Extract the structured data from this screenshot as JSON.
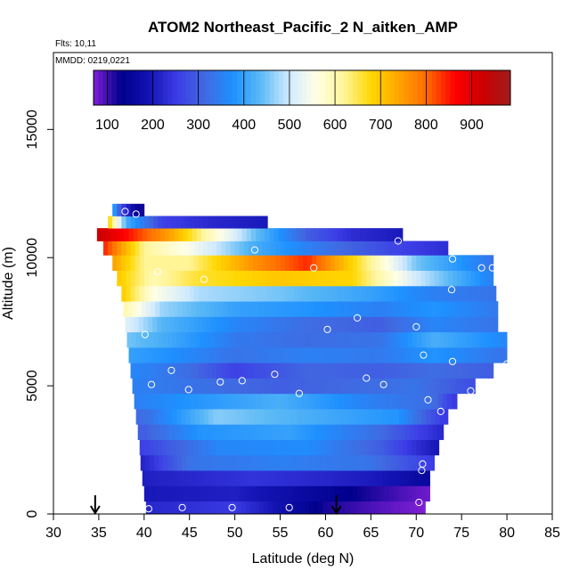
{
  "chart_data": {
    "type": "heatmap",
    "title": "ATOM2 Northeast_Pacific_2 N_aitken_AMP",
    "flights_label": "Flts: 10,11",
    "dates_label": "MMDD: 0219,0221",
    "xlabel": "Latitude (deg N)",
    "ylabel": "Altitude (m)",
    "xlim": [
      30,
      85
    ],
    "ylim": [
      0,
      18000
    ],
    "x_ticks": [
      "30",
      "35",
      "40",
      "45",
      "50",
      "55",
      "60",
      "65",
      "70",
      "75",
      "80",
      "85"
    ],
    "y_ticks": [
      "0",
      "5000",
      "10000",
      "15000"
    ],
    "colorbar": {
      "range": [
        70,
        985
      ],
      "ticks": [
        "100",
        "200",
        "300",
        "400",
        "500",
        "600",
        "700",
        "800",
        "900"
      ],
      "colors": [
        "#7f1fd6",
        "#00008c",
        "#1313b3",
        "#3c3ce6",
        "#4169e1",
        "#1e90ff",
        "#5ab9f5",
        "#cfe9ff",
        "#ffffe6",
        "#fff59a",
        "#ffd700",
        "#ffa500",
        "#ff6a00",
        "#ff0000",
        "#cc0000",
        "#a01c1c"
      ]
    },
    "altitude_bins": [
      {
        "alt": 200,
        "lat_min": 40.2,
        "lat_max": 71.0,
        "values": [
          [
            40,
            220
          ],
          [
            50,
            250
          ],
          [
            60,
            120
          ],
          [
            66,
            90
          ],
          [
            71,
            70
          ]
        ]
      },
      {
        "alt": 800,
        "lat_min": 40.0,
        "lat_max": 71.5,
        "values": [
          [
            40,
            200
          ],
          [
            50,
            210
          ],
          [
            60,
            150
          ],
          [
            66,
            110
          ],
          [
            71,
            80
          ]
        ]
      },
      {
        "alt": 1400,
        "lat_min": 39.8,
        "lat_max": 71.5,
        "values": [
          [
            40,
            210
          ],
          [
            52,
            240
          ],
          [
            60,
            220
          ],
          [
            66,
            200
          ],
          [
            71,
            160
          ]
        ]
      },
      {
        "alt": 2000,
        "lat_min": 39.6,
        "lat_max": 72.0,
        "values": [
          [
            40,
            220
          ],
          [
            45,
            330
          ],
          [
            55,
            350
          ],
          [
            65,
            330
          ],
          [
            72,
            250
          ]
        ]
      },
      {
        "alt": 2600,
        "lat_min": 39.5,
        "lat_max": 72.5,
        "values": [
          [
            40,
            260
          ],
          [
            48,
            360
          ],
          [
            58,
            370
          ],
          [
            66,
            300
          ],
          [
            72,
            200
          ]
        ]
      },
      {
        "alt": 3200,
        "lat_min": 39.3,
        "lat_max": 73.0,
        "values": [
          [
            40,
            300
          ],
          [
            46,
            380
          ],
          [
            56,
            400
          ],
          [
            66,
            320
          ],
          [
            73,
            220
          ]
        ]
      },
      {
        "alt": 3800,
        "lat_min": 39.1,
        "lat_max": 73.5,
        "values": [
          [
            40,
            320
          ],
          [
            48,
            460
          ],
          [
            58,
            420
          ],
          [
            68,
            380
          ],
          [
            73,
            250
          ]
        ]
      },
      {
        "alt": 4400,
        "lat_min": 38.9,
        "lat_max": 74.5,
        "values": [
          [
            39,
            350
          ],
          [
            45,
            380
          ],
          [
            55,
            420
          ],
          [
            65,
            350
          ],
          [
            72,
            320
          ],
          [
            74,
            250
          ]
        ]
      },
      {
        "alt": 5000,
        "lat_min": 38.7,
        "lat_max": 76.5,
        "values": [
          [
            39,
            350
          ],
          [
            45,
            330
          ],
          [
            55,
            300
          ],
          [
            65,
            320
          ],
          [
            70,
            330
          ],
          [
            76,
            280
          ]
        ]
      },
      {
        "alt": 5600,
        "lat_min": 38.5,
        "lat_max": 78.5,
        "values": [
          [
            39,
            360
          ],
          [
            45,
            320
          ],
          [
            50,
            260
          ],
          [
            58,
            310
          ],
          [
            66,
            300
          ],
          [
            72,
            320
          ],
          [
            78,
            300
          ]
        ]
      },
      {
        "alt": 6200,
        "lat_min": 38.3,
        "lat_max": 80.0,
        "values": [
          [
            38,
            400
          ],
          [
            42,
            380
          ],
          [
            50,
            330
          ],
          [
            58,
            350
          ],
          [
            66,
            340
          ],
          [
            72,
            380
          ],
          [
            80,
            330
          ]
        ]
      },
      {
        "alt": 6800,
        "lat_min": 38.1,
        "lat_max": 80.0,
        "values": [
          [
            38,
            450
          ],
          [
            42,
            420
          ],
          [
            50,
            340
          ],
          [
            58,
            320
          ],
          [
            66,
            330
          ],
          [
            72,
            420
          ],
          [
            80,
            360
          ]
        ]
      },
      {
        "alt": 7400,
        "lat_min": 37.9,
        "lat_max": 79.0,
        "values": [
          [
            38,
            520
          ],
          [
            42,
            430
          ],
          [
            50,
            360
          ],
          [
            58,
            320
          ],
          [
            66,
            300
          ],
          [
            72,
            360
          ],
          [
            79,
            330
          ]
        ]
      },
      {
        "alt": 8000,
        "lat_min": 37.7,
        "lat_max": 79.0,
        "values": [
          [
            38,
            600
          ],
          [
            42,
            470
          ],
          [
            50,
            400
          ],
          [
            58,
            380
          ],
          [
            66,
            350
          ],
          [
            72,
            380
          ],
          [
            79,
            340
          ]
        ]
      },
      {
        "alt": 8600,
        "lat_min": 37.5,
        "lat_max": 78.8,
        "values": [
          [
            37.5,
            700
          ],
          [
            41,
            560
          ],
          [
            46,
            480
          ],
          [
            55,
            450
          ],
          [
            65,
            400
          ],
          [
            72,
            350
          ],
          [
            78.8,
            330
          ]
        ]
      },
      {
        "alt": 9200,
        "lat_min": 37.0,
        "lat_max": 78.5,
        "values": [
          [
            37,
            700
          ],
          [
            41,
            600
          ],
          [
            46,
            660
          ],
          [
            55,
            700
          ],
          [
            63,
            680
          ],
          [
            70,
            500
          ],
          [
            78.5,
            350
          ]
        ]
      },
      {
        "alt": 9800,
        "lat_min": 36.5,
        "lat_max": 78.5,
        "values": [
          [
            36.5,
            750
          ],
          [
            40,
            620
          ],
          [
            45,
            620
          ],
          [
            52,
            760
          ],
          [
            58,
            840
          ],
          [
            64,
            650
          ],
          [
            70,
            450
          ],
          [
            78.5,
            330
          ]
        ]
      },
      {
        "alt": 10400,
        "lat_min": 35.5,
        "lat_max": 73.5,
        "values": [
          [
            35.5,
            850
          ],
          [
            40,
            620
          ],
          [
            45,
            550
          ],
          [
            52,
            420
          ],
          [
            60,
            330
          ],
          [
            67,
            270
          ],
          [
            73.5,
            230
          ]
        ]
      },
      {
        "alt": 10900,
        "lat_min": 34.8,
        "lat_max": 68.5,
        "values": [
          [
            34.8,
            930
          ],
          [
            38,
            860
          ],
          [
            43,
            740
          ],
          [
            47,
            600
          ],
          [
            52,
            450
          ],
          [
            58,
            300
          ],
          [
            63,
            230
          ],
          [
            68.5,
            200
          ]
        ]
      },
      {
        "alt": 11400,
        "lat_min": 36.0,
        "lat_max": 53.6,
        "values": [
          [
            36,
            700
          ],
          [
            38,
            420
          ],
          [
            42,
            260
          ],
          [
            48,
            220
          ],
          [
            53.6,
            200
          ]
        ]
      },
      {
        "alt": 11850,
        "lat_min": 36.5,
        "lat_max": 40.0,
        "values": [
          [
            36.5,
            420
          ],
          [
            37.5,
            260
          ],
          [
            39,
            160
          ],
          [
            40,
            110
          ]
        ]
      }
    ],
    "markers": [
      [
        40.5,
        200
      ],
      [
        44.2,
        250
      ],
      [
        49.7,
        250
      ],
      [
        56.0,
        250
      ],
      [
        70.3,
        450
      ],
      [
        70.6,
        1700
      ],
      [
        70.7,
        1950
      ],
      [
        40.8,
        5050
      ],
      [
        44.9,
        4850
      ],
      [
        48.4,
        5150
      ],
      [
        50.8,
        5200
      ],
      [
        54.4,
        5450
      ],
      [
        57.1,
        4700
      ],
      [
        64.5,
        5300
      ],
      [
        66.4,
        5050
      ],
      [
        71.3,
        4450
      ],
      [
        72.7,
        4000
      ],
      [
        43.0,
        5600
      ],
      [
        76.0,
        4800
      ],
      [
        80.0,
        5850
      ],
      [
        74.0,
        5950
      ],
      [
        40.1,
        7000
      ],
      [
        60.2,
        7200
      ],
      [
        63.5,
        7650
      ],
      [
        70.0,
        7300
      ],
      [
        70.8,
        6200
      ],
      [
        41.5,
        9450
      ],
      [
        46.6,
        9150
      ],
      [
        58.7,
        9600
      ],
      [
        73.9,
        8750
      ],
      [
        77.2,
        9600
      ],
      [
        78.4,
        9600
      ],
      [
        52.2,
        10300
      ],
      [
        68.0,
        10650
      ],
      [
        74.0,
        9950
      ],
      [
        37.9,
        11800
      ],
      [
        39.1,
        11700
      ]
    ],
    "flight_arrows": [
      34.6,
      61.2
    ]
  }
}
